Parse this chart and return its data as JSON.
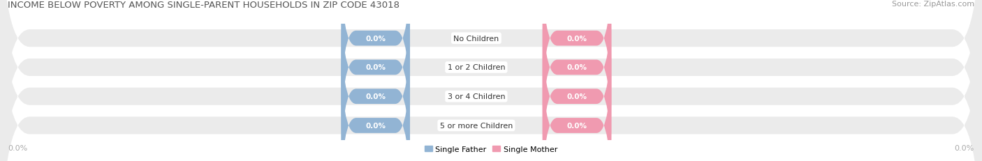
{
  "title": "INCOME BELOW POVERTY AMONG SINGLE-PARENT HOUSEHOLDS IN ZIP CODE 43018",
  "source": "Source: ZipAtlas.com",
  "categories": [
    "No Children",
    "1 or 2 Children",
    "3 or 4 Children",
    "5 or more Children"
  ],
  "single_father_values": [
    0.0,
    0.0,
    0.0,
    0.0
  ],
  "single_mother_values": [
    0.0,
    0.0,
    0.0,
    0.0
  ],
  "father_color": "#92b4d4",
  "mother_color": "#f09ab0",
  "row_bg_color": "#ebebeb",
  "title_fontsize": 9.5,
  "source_fontsize": 8,
  "label_fontsize": 8,
  "cat_fontsize": 8,
  "val_fontsize": 7.5,
  "tick_fontsize": 8,
  "figsize": [
    14.06,
    2.32
  ],
  "dpi": 100
}
